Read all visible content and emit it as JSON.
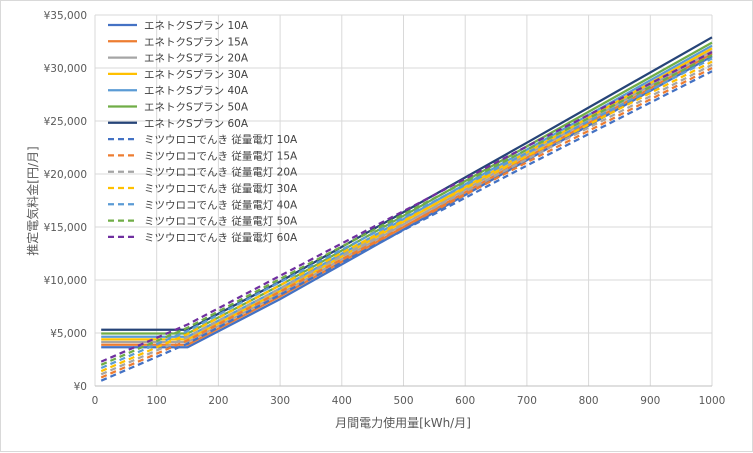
{
  "chart_data": {
    "type": "line",
    "title": "",
    "xlabel": "月間電力使用量[kWh/月]",
    "ylabel": "推定電気料金[円/月]",
    "xlim": [
      0,
      1000
    ],
    "ylim": [
      0,
      35000
    ],
    "x_ticks": [
      0,
      100,
      200,
      300,
      400,
      500,
      600,
      700,
      800,
      900,
      1000
    ],
    "y_ticks": [
      0,
      5000,
      10000,
      15000,
      20000,
      25000,
      30000,
      35000
    ],
    "y_tick_labels": [
      "¥0",
      "¥5,000",
      "¥10,000",
      "¥15,000",
      "¥20,000",
      "¥25,000",
      "¥30,000",
      "¥35,000"
    ],
    "grid": true,
    "legend_position": "top-left",
    "x": [
      10,
      150,
      300,
      700,
      1000
    ],
    "series": [
      {
        "name": "エネトクSプラン 10A",
        "color": "#4472C4",
        "dash": false,
        "values": [
          3650,
          3650,
          8200,
          21300,
          31100
        ]
      },
      {
        "name": "エネトクSプラン 15A",
        "color": "#ED7D31",
        "dash": false,
        "values": [
          3900,
          3900,
          8450,
          21550,
          31350
        ]
      },
      {
        "name": "エネトクSプラン 20A",
        "color": "#A5A5A5",
        "dash": false,
        "values": [
          4150,
          4150,
          8700,
          21800,
          31600
        ]
      },
      {
        "name": "エネトクSプラン 30A",
        "color": "#FFC000",
        "dash": false,
        "values": [
          4400,
          4400,
          8950,
          22050,
          31850
        ]
      },
      {
        "name": "エネトクSプラン 40A",
        "color": "#5B9BD5",
        "dash": false,
        "values": [
          4650,
          4650,
          9200,
          22300,
          32100
        ]
      },
      {
        "name": "エネトクSプラン 50A",
        "color": "#70AD47",
        "dash": false,
        "values": [
          4950,
          4950,
          9500,
          22600,
          32400
        ]
      },
      {
        "name": "エネトクSプラン 60A",
        "color": "#264478",
        "dash": false,
        "values": [
          5300,
          5300,
          9850,
          22950,
          32900
        ]
      },
      {
        "name": "ミツウロコでんき 従量電灯 10A",
        "color": "#4472C4",
        "dash": true,
        "values": [
          500,
          4000,
          8600,
          20800,
          29700
        ]
      },
      {
        "name": "ミツウロコでんき 従量電灯 15A",
        "color": "#ED7D31",
        "dash": true,
        "values": [
          800,
          4300,
          8900,
          21100,
          30000
        ]
      },
      {
        "name": "ミツウロコでんき 従量電灯 20A",
        "color": "#A5A5A5",
        "dash": true,
        "values": [
          1100,
          4600,
          9200,
          21400,
          30300
        ]
      },
      {
        "name": "ミツウロコでんき 従量電灯 30A",
        "color": "#FFC000",
        "dash": true,
        "values": [
          1400,
          4900,
          9500,
          21700,
          30600
        ]
      },
      {
        "name": "ミツウロコでんき 従量電灯 40A",
        "color": "#5B9BD5",
        "dash": true,
        "values": [
          1700,
          5200,
          9800,
          22000,
          30900
        ]
      },
      {
        "name": "ミツウロコでんき 従量電灯 50A",
        "color": "#70AD47",
        "dash": true,
        "values": [
          2000,
          5500,
          10100,
          22300,
          31200
        ]
      },
      {
        "name": "ミツウロコでんき 従量電灯 60A",
        "color": "#7030A0",
        "dash": true,
        "values": [
          2300,
          5800,
          10400,
          22600,
          31500
        ]
      }
    ]
  }
}
